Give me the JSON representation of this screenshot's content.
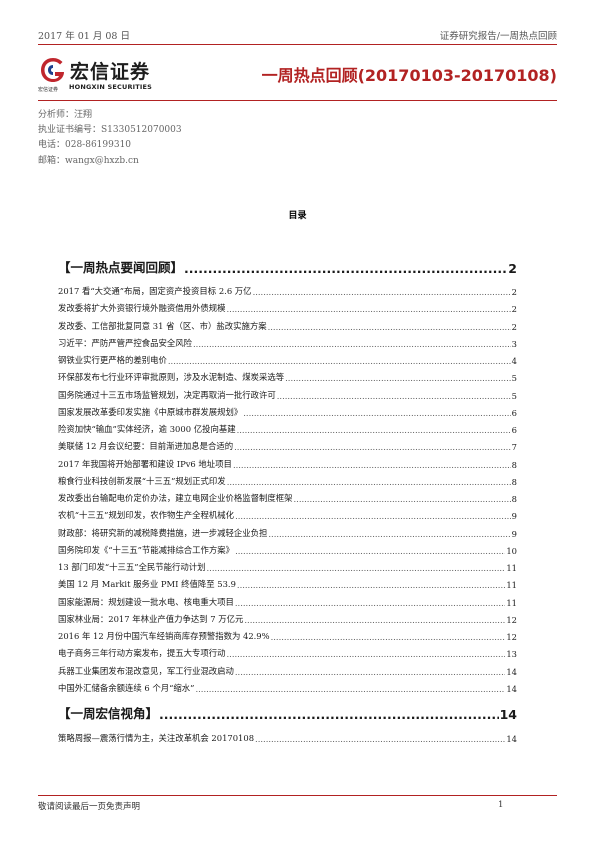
{
  "header": {
    "date": "2017 年 01 月 08 日",
    "category": "证券研究报告/一周热点回顾",
    "brand_cn": "宏信证券",
    "brand_en": "HONGXIN SECURITIES",
    "brand_en_cn": "宏信证券",
    "title": "一周热点回顾(20170103-20170108)",
    "accent_color": "#b22222"
  },
  "analyst": [
    "分析师：汪翔",
    "执业证书编号：S1330512070003",
    "电话：028-86199310",
    "邮箱：wangx@hxzb.cn"
  ],
  "toc": {
    "heading": "目录",
    "sections": [
      {
        "title": "【一周热点要闻回顾】",
        "page": "2",
        "entries": [
          {
            "text": "2017 看“大交通”布局，固定资产投资目标 2.6 万亿",
            "page": "2"
          },
          {
            "text": "发改委将扩大外资银行境外融资借用外债规模",
            "page": "2"
          },
          {
            "text": "发改委、工信部批复同意 31 省（区、市）盐改实施方案",
            "page": "2"
          },
          {
            "text": "习近平：严防严管严控食品安全风险",
            "page": "3"
          },
          {
            "text": "钢铁业实行更严格的差别电价",
            "page": "4"
          },
          {
            "text": "环保部发布七行业环评审批原则，涉及水泥制造、煤炭采选等",
            "page": "5"
          },
          {
            "text": "国务院通过十三五市场监管规划，决定再取消一批行政许可",
            "page": "5"
          },
          {
            "text": "国家发展改革委印发实施《中原城市群发展规划》",
            "page": "6"
          },
          {
            "text": "险资加快“输血”实体经济，逾 3000 亿投向基建",
            "page": "6"
          },
          {
            "text": "美联储 12 月会议纪要：目前渐进加息是合适的",
            "page": "7"
          },
          {
            "text": "2017 年我国将开始部署和建设 IPv6 地址项目",
            "page": "8"
          },
          {
            "text": "粮食行业科技创新发展“十三五”规划正式印发",
            "page": "8"
          },
          {
            "text": "发改委出台输配电价定价办法，建立电网企业价格监督制度框架",
            "page": "8"
          },
          {
            "text": "农机“十三五”规划印发，农作物生产全程机械化",
            "page": "9"
          },
          {
            "text": "财政部：将研究新的减税降费措施，进一步减轻企业负担",
            "page": "9"
          },
          {
            "text": "国务院印发《“十三五”节能减排综合工作方案》",
            "page": "10"
          },
          {
            "text": "13 部门印发“十三五”全民节能行动计划",
            "page": "11"
          },
          {
            "text": "美国 12 月 Markit 服务业 PMI 终值降至 53.9",
            "page": "11"
          },
          {
            "text": "国家能源局：规划建设一批水电、核电重大项目",
            "page": "11"
          },
          {
            "text": "国家林业局：2017 年林业产值力争达到 7 万亿元",
            "page": "12"
          },
          {
            "text": "2016 年 12 月份中国汽车经销商库存预警指数为 42.9%",
            "page": "12"
          },
          {
            "text": "电子商务三年行动方案发布，提五大专项行动",
            "page": "13"
          },
          {
            "text": "兵器工业集团发布混改意见，军工行业混改启动",
            "page": "14"
          },
          {
            "text": "中国外汇储备余额连续 6 个月“缩水”",
            "page": "14"
          }
        ]
      },
      {
        "title": "【一周宏信视角】",
        "page": "14",
        "entries": [
          {
            "text": "策略周报—震荡行情为主，关注改革机会 20170108",
            "page": "14"
          }
        ]
      }
    ]
  },
  "footer": {
    "note": "敬请阅读最后一页免责声明",
    "page": "1"
  }
}
